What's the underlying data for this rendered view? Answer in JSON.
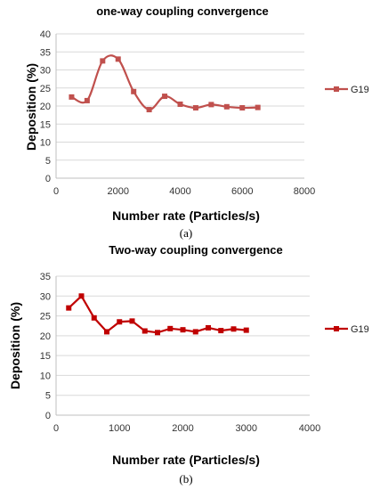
{
  "chart_data": [
    {
      "type": "line",
      "title": "one-way coupling convergence",
      "xlabel": "Number rate (Particles/s)",
      "ylabel": "Deposition (%)",
      "xlim": [
        0,
        8000
      ],
      "ylim": [
        0,
        40
      ],
      "xticks": [
        0,
        2000,
        4000,
        6000,
        8000
      ],
      "yticks": [
        0,
        5,
        10,
        15,
        20,
        25,
        30,
        35,
        40
      ],
      "grid": true,
      "smooth": true,
      "legend_position": "right",
      "caption": "(a)",
      "series": [
        {
          "name": "G19",
          "color": "#c0504d",
          "x": [
            500,
            1000,
            1500,
            2000,
            2500,
            3000,
            3500,
            4000,
            4500,
            5000,
            5500,
            6000,
            6500
          ],
          "y": [
            22.5,
            21.5,
            32.5,
            33.0,
            24.0,
            19.0,
            22.7,
            20.5,
            19.5,
            20.4,
            19.8,
            19.5,
            19.6
          ]
        }
      ]
    },
    {
      "type": "line",
      "title": "Two-way coupling convergence",
      "xlabel": "Number rate (Particles/s)",
      "ylabel": "Deposition (%)",
      "xlim": [
        0,
        4000
      ],
      "ylim": [
        0,
        35
      ],
      "xticks": [
        0,
        1000,
        2000,
        3000,
        4000
      ],
      "yticks": [
        0,
        5,
        10,
        15,
        20,
        25,
        30,
        35
      ],
      "grid": true,
      "smooth": false,
      "legend_position": "right",
      "caption": "(b)",
      "series": [
        {
          "name": "G19",
          "color": "#c00000",
          "x": [
            200,
            400,
            600,
            800,
            1000,
            1200,
            1400,
            1600,
            1800,
            2000,
            2200,
            2400,
            2600,
            2800,
            3000
          ],
          "y": [
            27.0,
            30.0,
            24.5,
            21.0,
            23.5,
            23.7,
            21.2,
            20.8,
            21.8,
            21.5,
            21.0,
            22.0,
            21.3,
            21.7,
            21.4
          ]
        }
      ]
    }
  ]
}
